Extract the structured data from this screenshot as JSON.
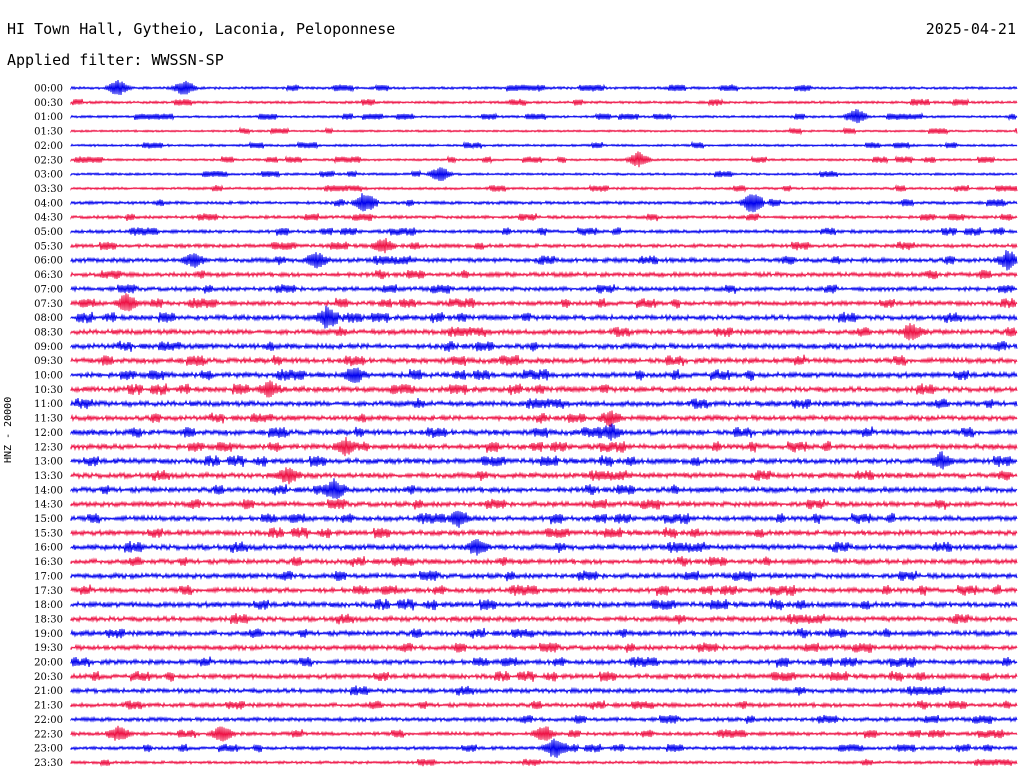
{
  "header": {
    "station": "HI Town Hall, Gytheio, Laconia, Peloponnese",
    "date": "2025-04-21",
    "filter_label": "Applied filter: WWSSN-SP"
  },
  "chart_data": {
    "type": "line",
    "title": "HI Town Hall, Gytheio, Laconia, Peloponnese",
    "ylabel": "HNZ - 20000",
    "xlabel": "",
    "grid": false,
    "colors": [
      "#0000ee",
      "#ee1144"
    ],
    "rows": [
      {
        "label": "00:00",
        "activity": 0.35,
        "events": [
          0.05,
          0.12
        ]
      },
      {
        "label": "00:30",
        "activity": 0.35,
        "events": []
      },
      {
        "label": "01:00",
        "activity": 0.3,
        "events": [
          0.83
        ]
      },
      {
        "label": "01:30",
        "activity": 0.25,
        "events": []
      },
      {
        "label": "02:00",
        "activity": 0.3,
        "events": []
      },
      {
        "label": "02:30",
        "activity": 0.3,
        "events": [
          0.6
        ]
      },
      {
        "label": "03:00",
        "activity": 0.3,
        "events": [
          0.39
        ]
      },
      {
        "label": "03:30",
        "activity": 0.35,
        "events": []
      },
      {
        "label": "04:00",
        "activity": 0.45,
        "events": [
          0.31,
          0.72
        ]
      },
      {
        "label": "04:30",
        "activity": 0.45,
        "events": []
      },
      {
        "label": "05:00",
        "activity": 0.5,
        "events": []
      },
      {
        "label": "05:30",
        "activity": 0.55,
        "events": [
          0.33
        ]
      },
      {
        "label": "06:00",
        "activity": 0.7,
        "events": [
          0.13,
          0.26,
          0.99
        ]
      },
      {
        "label": "06:30",
        "activity": 0.7,
        "events": []
      },
      {
        "label": "07:00",
        "activity": 0.65,
        "events": []
      },
      {
        "label": "07:30",
        "activity": 0.7,
        "events": [
          0.06
        ]
      },
      {
        "label": "08:00",
        "activity": 0.8,
        "events": [
          0.27
        ]
      },
      {
        "label": "08:30",
        "activity": 0.8,
        "events": [
          0.89
        ]
      },
      {
        "label": "09:00",
        "activity": 0.85,
        "events": []
      },
      {
        "label": "09:30",
        "activity": 0.85,
        "events": []
      },
      {
        "label": "10:00",
        "activity": 0.85,
        "events": [
          0.3
        ]
      },
      {
        "label": "10:30",
        "activity": 0.85,
        "events": [
          0.21
        ]
      },
      {
        "label": "11:00",
        "activity": 0.85,
        "events": []
      },
      {
        "label": "11:30",
        "activity": 0.8,
        "events": [
          0.57
        ]
      },
      {
        "label": "12:00",
        "activity": 0.85,
        "events": [
          0.57
        ]
      },
      {
        "label": "12:30",
        "activity": 0.85,
        "events": [
          0.29
        ]
      },
      {
        "label": "13:00",
        "activity": 0.85,
        "events": [
          0.92
        ]
      },
      {
        "label": "13:30",
        "activity": 0.85,
        "events": [
          0.23
        ]
      },
      {
        "label": "14:00",
        "activity": 0.85,
        "events": [
          0.28
        ]
      },
      {
        "label": "14:30",
        "activity": 0.8,
        "events": []
      },
      {
        "label": "15:00",
        "activity": 0.8,
        "events": [
          0.41
        ]
      },
      {
        "label": "15:30",
        "activity": 0.8,
        "events": []
      },
      {
        "label": "16:00",
        "activity": 0.9,
        "events": [
          0.43
        ]
      },
      {
        "label": "16:30",
        "activity": 0.8,
        "events": []
      },
      {
        "label": "17:00",
        "activity": 0.8,
        "events": []
      },
      {
        "label": "17:30",
        "activity": 0.8,
        "events": []
      },
      {
        "label": "18:00",
        "activity": 0.85,
        "events": []
      },
      {
        "label": "18:30",
        "activity": 0.8,
        "events": []
      },
      {
        "label": "19:00",
        "activity": 0.8,
        "events": []
      },
      {
        "label": "19:30",
        "activity": 0.75,
        "events": []
      },
      {
        "label": "20:00",
        "activity": 0.75,
        "events": []
      },
      {
        "label": "20:30",
        "activity": 0.75,
        "events": []
      },
      {
        "label": "21:00",
        "activity": 0.7,
        "events": []
      },
      {
        "label": "21:30",
        "activity": 0.65,
        "events": []
      },
      {
        "label": "22:00",
        "activity": 0.6,
        "events": []
      },
      {
        "label": "22:30",
        "activity": 0.55,
        "events": [
          0.05,
          0.16,
          0.5
        ]
      },
      {
        "label": "23:00",
        "activity": 0.5,
        "events": [
          0.51
        ]
      },
      {
        "label": "23:30",
        "activity": 0.4,
        "events": []
      }
    ]
  }
}
